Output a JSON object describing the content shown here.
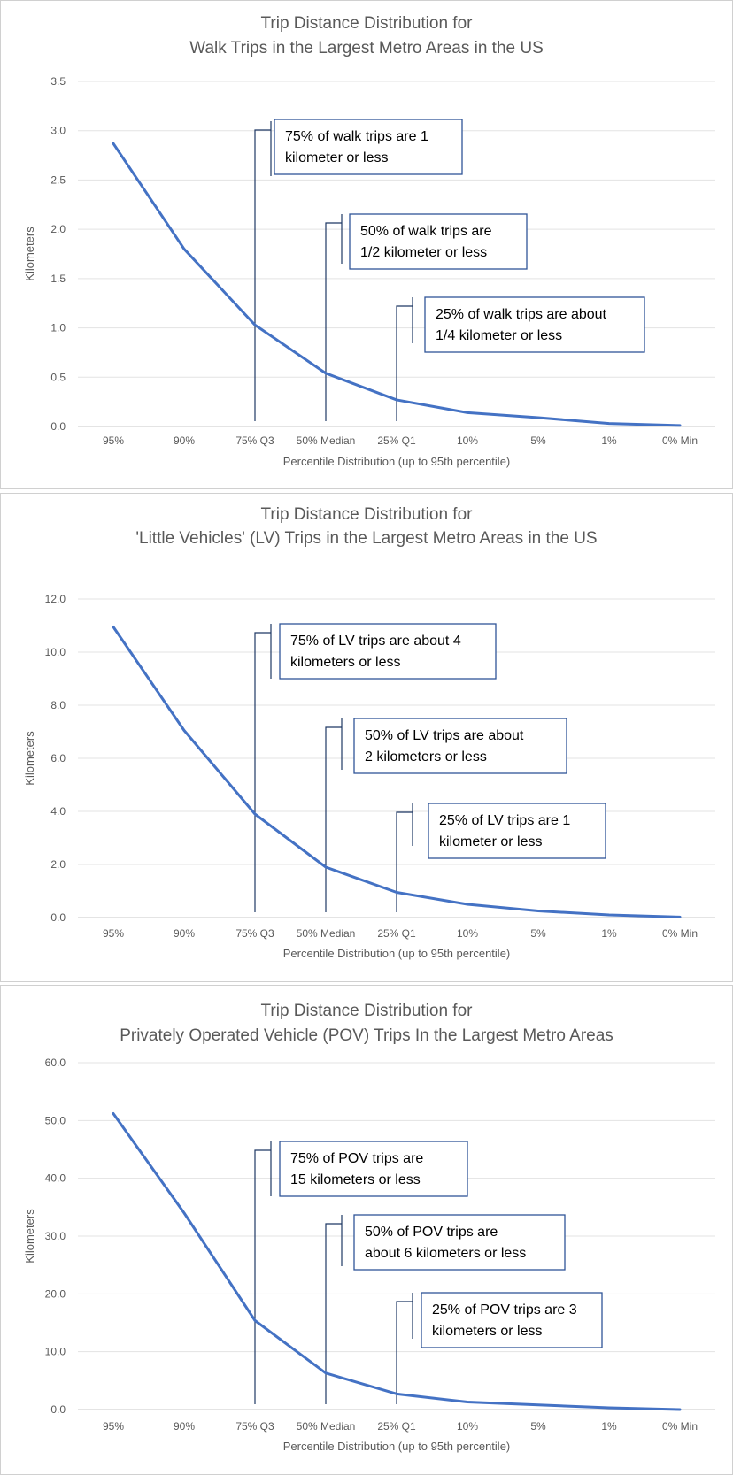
{
  "chart_data": [
    {
      "type": "line",
      "title": [
        "Trip Distance Distribution for",
        "Walk Trips in the Largest Metro Areas in the US"
      ],
      "xlabel": "Percentile Distribution (up to 95th percentile)",
      "ylabel": "Kilometers",
      "categories": [
        "95%",
        "90%",
        "75% Q3",
        "50% Median",
        "25% Q1",
        "10%",
        "5%",
        "1%",
        "0% Min"
      ],
      "ylim": [
        0,
        3.5
      ],
      "yticks": [
        "0.0",
        "0.5",
        "1.0",
        "1.5",
        "2.0",
        "2.5",
        "3.0",
        "3.5"
      ],
      "series": [
        {
          "name": "Walk",
          "values": [
            2.87,
            1.8,
            1.03,
            0.54,
            0.27,
            0.14,
            0.09,
            0.03,
            0.01
          ],
          "color": "#4472c4"
        }
      ],
      "annotations": [
        {
          "category_index": 2,
          "lines": [
            "75% of walk trips are 1",
            "kilometer or less"
          ]
        },
        {
          "category_index": 3,
          "lines": [
            "50% of walk trips are",
            "1/2 kilometer or less"
          ]
        },
        {
          "category_index": 4,
          "lines": [
            "25% of walk trips are about",
            "1/4 kilometer or less"
          ]
        }
      ]
    },
    {
      "type": "line",
      "title": [
        "Trip Distance Distribution for",
        "'Little Vehicles' (LV) Trips in the Largest Metro Areas in the US"
      ],
      "xlabel": "Percentile Distribution (up to 95th percentile)",
      "ylabel": "Kilometers",
      "categories": [
        "95%",
        "90%",
        "75% Q3",
        "50% Median",
        "25% Q1",
        "10%",
        "5%",
        "1%",
        "0% Min"
      ],
      "ylim": [
        0,
        12
      ],
      "yticks": [
        "0.0",
        "2.0",
        "4.0",
        "6.0",
        "8.0",
        "10.0",
        "12.0"
      ],
      "series": [
        {
          "name": "LV",
          "values": [
            10.95,
            7.05,
            3.9,
            1.9,
            0.95,
            0.5,
            0.25,
            0.1,
            0.02
          ],
          "color": "#4472c4"
        }
      ],
      "annotations": [
        {
          "category_index": 2,
          "lines": [
            "75% of LV trips are about 4",
            "kilometers or less"
          ]
        },
        {
          "category_index": 3,
          "lines": [
            "50% of LV trips are about",
            "2 kilometers or less"
          ]
        },
        {
          "category_index": 4,
          "lines": [
            "25% of LV trips are 1",
            "kilometer or less"
          ]
        }
      ]
    },
    {
      "type": "line",
      "title": [
        "Trip Distance Distribution for",
        "Privately Operated Vehicle (POV) Trips In the Largest Metro Areas"
      ],
      "xlabel": "Percentile Distribution (up to 95th percentile)",
      "ylabel": "Kilometers",
      "categories": [
        "95%",
        "90%",
        "75% Q3",
        "50% Median",
        "25% Q1",
        "10%",
        "5%",
        "1%",
        "0% Min"
      ],
      "ylim": [
        0,
        60
      ],
      "yticks": [
        "0.0",
        "10.0",
        "20.0",
        "30.0",
        "40.0",
        "50.0",
        "60.0"
      ],
      "series": [
        {
          "name": "POV",
          "values": [
            51.2,
            34.0,
            15.4,
            6.3,
            2.7,
            1.3,
            0.8,
            0.3,
            0.0
          ],
          "color": "#4472c4"
        }
      ],
      "annotations": [
        {
          "category_index": 2,
          "lines": [
            "75% of POV trips are",
            "15 kilometers or less"
          ]
        },
        {
          "category_index": 3,
          "lines": [
            "50% of POV trips are",
            "about 6 kilometers or less"
          ]
        },
        {
          "category_index": 4,
          "lines": [
            "25% of POV trips are 3",
            "kilometers or less"
          ]
        }
      ]
    }
  ]
}
